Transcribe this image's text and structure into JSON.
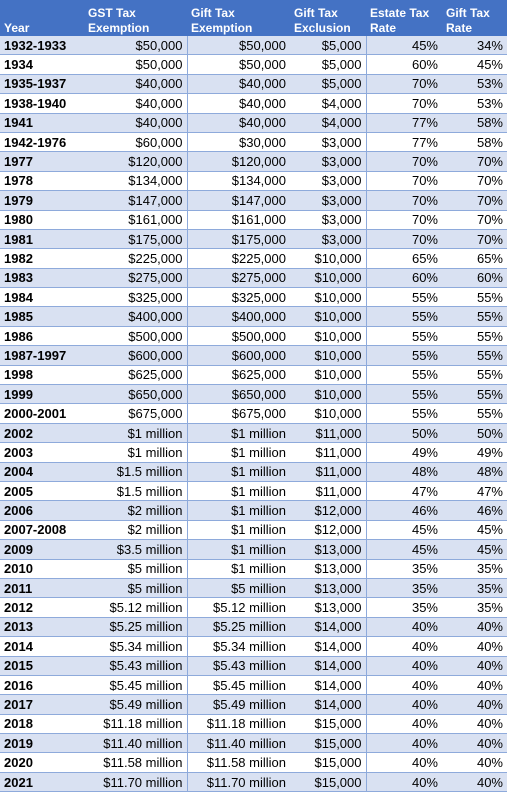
{
  "headers": [
    "Year",
    "GST Tax\nExemption",
    "Gift Tax\nExemption",
    "Gift Tax\nExclusion",
    "Estate Tax\nRate",
    "Gift Tax\nRate"
  ],
  "rows": [
    [
      "1932-1933",
      "$50,000",
      "$50,000",
      "$5,000",
      "45%",
      "34%"
    ],
    [
      "1934",
      "$50,000",
      "$50,000",
      "$5,000",
      "60%",
      "45%"
    ],
    [
      "1935-1937",
      "$40,000",
      "$40,000",
      "$5,000",
      "70%",
      "53%"
    ],
    [
      "1938-1940",
      "$40,000",
      "$40,000",
      "$4,000",
      "70%",
      "53%"
    ],
    [
      "1941",
      "$40,000",
      "$40,000",
      "$4,000",
      "77%",
      "58%"
    ],
    [
      "1942-1976",
      "$60,000",
      "$30,000",
      "$3,000",
      "77%",
      "58%"
    ],
    [
      "1977",
      "$120,000",
      "$120,000",
      "$3,000",
      "70%",
      "70%"
    ],
    [
      "1978",
      "$134,000",
      "$134,000",
      "$3,000",
      "70%",
      "70%"
    ],
    [
      "1979",
      "$147,000",
      "$147,000",
      "$3,000",
      "70%",
      "70%"
    ],
    [
      "1980",
      "$161,000",
      "$161,000",
      "$3,000",
      "70%",
      "70%"
    ],
    [
      "1981",
      "$175,000",
      "$175,000",
      "$3,000",
      "70%",
      "70%"
    ],
    [
      "1982",
      "$225,000",
      "$225,000",
      "$10,000",
      "65%",
      "65%"
    ],
    [
      "1983",
      "$275,000",
      "$275,000",
      "$10,000",
      "60%",
      "60%"
    ],
    [
      "1984",
      "$325,000",
      "$325,000",
      "$10,000",
      "55%",
      "55%"
    ],
    [
      "1985",
      "$400,000",
      "$400,000",
      "$10,000",
      "55%",
      "55%"
    ],
    [
      "1986",
      "$500,000",
      "$500,000",
      "$10,000",
      "55%",
      "55%"
    ],
    [
      "1987-1997",
      "$600,000",
      "$600,000",
      "$10,000",
      "55%",
      "55%"
    ],
    [
      "1998",
      "$625,000",
      "$625,000",
      "$10,000",
      "55%",
      "55%"
    ],
    [
      "1999",
      "$650,000",
      "$650,000",
      "$10,000",
      "55%",
      "55%"
    ],
    [
      "2000-2001",
      "$675,000",
      "$675,000",
      "$10,000",
      "55%",
      "55%"
    ],
    [
      "2002",
      "$1 million",
      "$1 million",
      "$11,000",
      "50%",
      "50%"
    ],
    [
      "2003",
      "$1 million",
      "$1 million",
      "$11,000",
      "49%",
      "49%"
    ],
    [
      "2004",
      "$1.5 million",
      "$1 million",
      "$11,000",
      "48%",
      "48%"
    ],
    [
      "2005",
      "$1.5 million",
      "$1 million",
      "$11,000",
      "47%",
      "47%"
    ],
    [
      "2006",
      "$2 million",
      "$1 million",
      "$12,000",
      "46%",
      "46%"
    ],
    [
      "2007-2008",
      "$2 million",
      "$1 million",
      "$12,000",
      "45%",
      "45%"
    ],
    [
      "2009",
      "$3.5 million",
      "$1 million",
      "$13,000",
      "45%",
      "45%"
    ],
    [
      "2010",
      "$5 million",
      "$1 million",
      "$13,000",
      "35%",
      "35%"
    ],
    [
      "2011",
      "$5 million",
      "$5 million",
      "$13,000",
      "35%",
      "35%"
    ],
    [
      "2012",
      "$5.12 million",
      "$5.12 million",
      "$13,000",
      "35%",
      "35%"
    ],
    [
      "2013",
      "$5.25 million",
      "$5.25 million",
      "$14,000",
      "40%",
      "40%"
    ],
    [
      "2014",
      "$5.34 million",
      "$5.34 million",
      "$14,000",
      "40%",
      "40%"
    ],
    [
      "2015",
      "$5.43 million",
      "$5.43 million",
      "$14,000",
      "40%",
      "40%"
    ],
    [
      "2016",
      "$5.45 million",
      "$5.45 million",
      "$14,000",
      "40%",
      "40%"
    ],
    [
      "2017",
      "$5.49 million",
      "$5.49 million",
      "$14,000",
      "40%",
      "40%"
    ],
    [
      "2018",
      "$11.18 million",
      "$11.18 million",
      "$15,000",
      "40%",
      "40%"
    ],
    [
      "2019",
      "$11.40 million",
      "$11.40 million",
      "$15,000",
      "40%",
      "40%"
    ],
    [
      "2020",
      "$11.58 million",
      "$11.58 million",
      "$15,000",
      "40%",
      "40%"
    ],
    [
      "2021",
      "$11.70 million",
      "$11.70 million",
      "$15,000",
      "40%",
      "40%"
    ]
  ],
  "colors": {
    "header_bg": "#4472c4",
    "header_text": "#ffffff",
    "band_row": "#d9e1f2",
    "plain_row": "#ffffff",
    "grid_line": "#8eaadb"
  }
}
